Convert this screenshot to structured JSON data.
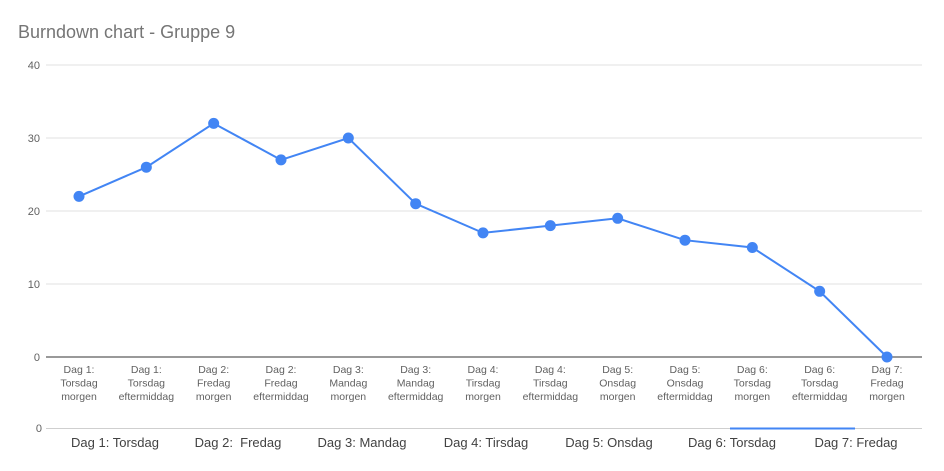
{
  "chart_data": {
    "type": "line",
    "title": "Burndown chart - Gruppe 9",
    "xlabel": "",
    "ylabel": "",
    "ylim": [
      0,
      40
    ],
    "yticks": [
      0,
      10,
      20,
      30,
      40
    ],
    "grid": true,
    "legend": "none",
    "color": "#4285f4",
    "categories": [
      [
        "Dag 1:",
        "Torsdag",
        "morgen"
      ],
      [
        "Dag 1:",
        "Torsdag",
        "eftermiddag"
      ],
      [
        "Dag 2:",
        "Fredag",
        "morgen"
      ],
      [
        "Dag 2:",
        "Fredag",
        "eftermiddag"
      ],
      [
        "Dag 3:",
        "Mandag",
        "morgen"
      ],
      [
        "Dag 3:",
        "Mandag",
        "eftermiddag"
      ],
      [
        "Dag 4:",
        "Tirsdag",
        "morgen"
      ],
      [
        "Dag 4:",
        "Tirsdag",
        "eftermiddag"
      ],
      [
        "Dag 5:",
        "Onsdag",
        "morgen"
      ],
      [
        "Dag 5:",
        "Onsdag",
        "eftermiddag"
      ],
      [
        "Dag 6:",
        "Torsdag",
        "morgen"
      ],
      [
        "Dag 6:",
        "Torsdag",
        "eftermiddag"
      ],
      [
        "Dag 7:",
        "Fredag",
        "morgen"
      ]
    ],
    "values": [
      22,
      26,
      32,
      27,
      30,
      21,
      17,
      18,
      19,
      16,
      15,
      9,
      0
    ],
    "lower_axis": {
      "tick_zero": "0",
      "day_labels": [
        "Dag 1: Torsdag",
        "Dag 2:  Fredag",
        "Dag 3: Mandag",
        "Dag 4: Tirsdag",
        "Dag 5: Onsdag",
        "Dag 6: Torsdag",
        "Dag 7: Fredag"
      ]
    }
  }
}
